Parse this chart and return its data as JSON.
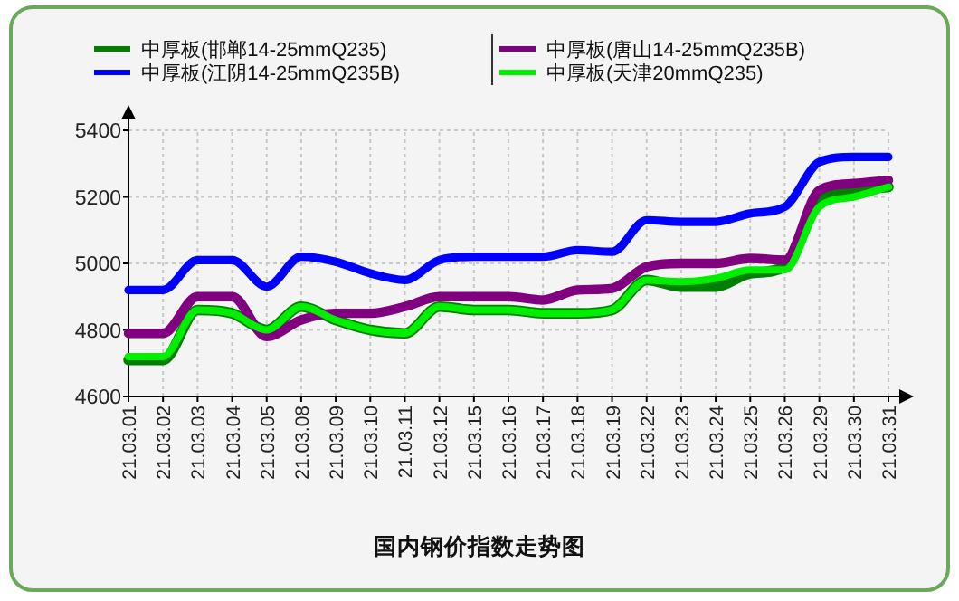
{
  "chart_data": {
    "type": "line",
    "title": "国内钢价指数走势图",
    "categories": [
      "21.03.01",
      "21.03.02",
      "21.03.03",
      "21.03.04",
      "21.03.05",
      "21.03.08",
      "21.03.09",
      "21.03.10",
      "21.03.11",
      "21.03.12",
      "21.03.15",
      "21.03.16",
      "21.03.17",
      "21.03.18",
      "21.03.19",
      "21.03.22",
      "21.03.23",
      "21.03.24",
      "21.03.25",
      "21.03.26",
      "21.03.29",
      "21.03.30",
      "21.03.31"
    ],
    "series": [
      {
        "name": "中厚板(邯郸14-25mmQ235)",
        "color": "#008000",
        "values": [
          4710,
          4710,
          4860,
          4850,
          4800,
          4870,
          4830,
          4800,
          4790,
          4870,
          4860,
          4860,
          4850,
          4850,
          4860,
          4950,
          4930,
          4930,
          4970,
          4990,
          5190,
          5220,
          5230
        ]
      },
      {
        "name": "中厚板(唐山14-25mmQ235B)",
        "color": "#800080",
        "values": [
          4790,
          4790,
          4900,
          4900,
          4780,
          4830,
          4850,
          4850,
          4870,
          4900,
          4900,
          4900,
          4890,
          4920,
          4925,
          4990,
          5000,
          5000,
          5015,
          5010,
          5220,
          5240,
          5250
        ]
      },
      {
        "name": "中厚板(江阴14-25mmQ235B)",
        "color": "#0000ff",
        "values": [
          4920,
          4920,
          5010,
          5010,
          4930,
          5020,
          5005,
          4970,
          4950,
          5010,
          5020,
          5020,
          5020,
          5040,
          5035,
          5130,
          5125,
          5125,
          5150,
          5170,
          5305,
          5320,
          5320
        ]
      },
      {
        "name": "中厚板(天津20mmQ235)",
        "color": "#00ee00",
        "values": [
          4720,
          4720,
          4860,
          4850,
          4800,
          4870,
          4830,
          4800,
          4790,
          4870,
          4860,
          4860,
          4850,
          4850,
          4860,
          4950,
          4945,
          4955,
          4980,
          4980,
          5170,
          5200,
          5230
        ]
      }
    ],
    "ylim": [
      4600,
      5400
    ],
    "yticks": [
      4600,
      4800,
      5000,
      5200,
      5400
    ],
    "grid": true,
    "legend": "top",
    "marker": "none"
  }
}
